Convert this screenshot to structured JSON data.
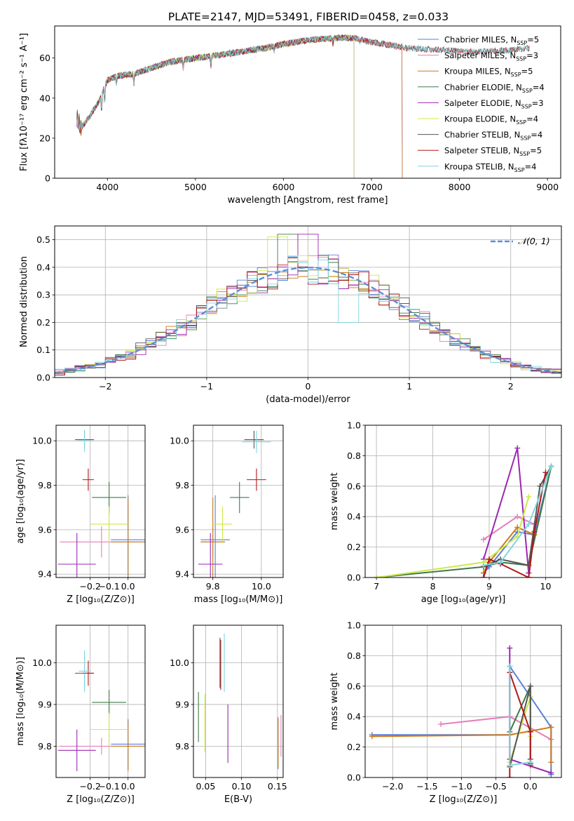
{
  "figure": {
    "title": "PLATE=2147, MJD=53491, FIBERID=0458, z=0.033"
  },
  "colors": {
    "Chabrier MILES": "#5b7fd6",
    "Salpeter MILES": "#e57fb8",
    "Kroupa MILES": "#cc7a1c",
    "Chabrier ELODIE": "#3f7a4a",
    "Salpeter ELODIE": "#9b27b0",
    "Kroupa ELODIE": "#cfe84a",
    "Chabrier STELIB": "#555555",
    "Salpeter STELIB": "#b01818",
    "Kroupa STELIB": "#7fd6e0",
    "normal": "#5b8fd6"
  },
  "chart_data": [
    {
      "id": "spectrum",
      "type": "line",
      "xlabel": "wavelength [Angstrom, rest frame]",
      "ylabel": "Flux [fλ10⁻¹⁷ erg cm⁻² s⁻¹ A⁻¹]",
      "xlim": [
        3400,
        9150
      ],
      "ylim": [
        0,
        76
      ],
      "xticks": [
        4000,
        5000,
        6000,
        7000,
        8000,
        9000
      ],
      "yticks": [
        0,
        20,
        40,
        60
      ],
      "grid": false,
      "legend_position": "top-right",
      "legend": [
        {
          "model": "Chabrier MILES",
          "label": "Chabrier MILES, N",
          "sub": "SSP",
          "tail": "=5"
        },
        {
          "model": "Salpeter MILES",
          "label": "Salpeter MILES, N",
          "sub": "SSP",
          "tail": "=3"
        },
        {
          "model": "Kroupa MILES",
          "label": "Kroupa MILES, N",
          "sub": "SSP",
          "tail": "=5"
        },
        {
          "model": "Chabrier ELODIE",
          "label": "Chabrier ELODIE, N",
          "sub": "SSP",
          "tail": "=4"
        },
        {
          "model": "Salpeter ELODIE",
          "label": "Salpeter ELODIE, N",
          "sub": "SSP",
          "tail": "=3"
        },
        {
          "model": "Kroupa ELODIE",
          "label": "Kroupa ELODIE, N",
          "sub": "SSP",
          "tail": "=4"
        },
        {
          "model": "Chabrier STELIB",
          "label": "Chabrier STELIB, N",
          "sub": "SSP",
          "tail": "=4"
        },
        {
          "model": "Salpeter STELIB",
          "label": "Salpeter STELIB, N",
          "sub": "SSP",
          "tail": "=5"
        },
        {
          "model": "Kroupa STELIB",
          "label": "Kroupa STELIB, N",
          "sub": "SSP",
          "tail": "=4"
        }
      ],
      "continuum": {
        "x": [
          3650,
          3700,
          3800,
          3900,
          4000,
          4100,
          4300,
          4500,
          4700,
          5000,
          5200,
          5500,
          5800,
          6000,
          6300,
          6600,
          6800,
          7000,
          7400,
          7800,
          8200,
          8600,
          8800
        ],
        "y": [
          30,
          25,
          31,
          38,
          49,
          51,
          52,
          55,
          58,
          60,
          61,
          63,
          65,
          67,
          69,
          70,
          70,
          68,
          65,
          64,
          63,
          64,
          65
        ]
      },
      "ranges": {
        "Chabrier MILES": [
          3650,
          7350
        ],
        "Salpeter MILES": [
          3650,
          7350
        ],
        "Kroupa MILES": [
          3650,
          7350
        ],
        "Chabrier ELODIE": [
          3650,
          6800
        ],
        "Salpeter ELODIE": [
          3650,
          6800
        ],
        "Kroupa ELODIE": [
          3650,
          6800
        ],
        "Chabrier STELIB": [
          3650,
          8800
        ],
        "Salpeter STELIB": [
          3650,
          8800
        ],
        "Kroupa STELIB": [
          3650,
          8800
        ]
      }
    },
    {
      "id": "residuals",
      "type": "bar",
      "xlabel": "(data-model)/error",
      "ylabel": "Normed distribution",
      "xlim": [
        -2.5,
        2.5
      ],
      "ylim": [
        0,
        0.55
      ],
      "xticks": [
        -2,
        -1,
        0,
        1,
        2
      ],
      "yticks": [
        0.0,
        0.1,
        0.2,
        0.3,
        0.4,
        0.5
      ],
      "grid": true,
      "bin_width": 0.1,
      "legend_position": "top-right",
      "legend": {
        "label": "𝒩(0, 1)"
      },
      "peaks": {
        "Chabrier ELODIE": [
          -0.2,
          0.52
        ],
        "Salpeter ELODIE": [
          0.0,
          0.52
        ],
        "Kroupa ELODIE": [
          -0.3,
          0.51
        ],
        "Kroupa STELIB": [
          0.4,
          0.2
        ]
      }
    },
    {
      "id": "age-vs-Z",
      "type": "scatter",
      "xlabel": "Z [log₁₀(Z/Z⊙)]",
      "ylabel": "age  [log₁₀(age/yr)]",
      "xlim": [
        -0.38,
        0.09
      ],
      "ylim": [
        9.385,
        10.07
      ],
      "xticks": [
        -0.2,
        -0.1,
        0.0
      ],
      "yticks": [
        9.4,
        9.6,
        9.8,
        10.0
      ],
      "grid": true,
      "points": [
        {
          "model": "Chabrier MILES",
          "x": 0.0,
          "y": 9.555,
          "xerr": 0.09,
          "yerr": 0.2
        },
        {
          "model": "Salpeter MILES",
          "x": -0.14,
          "y": 9.545,
          "xerr": 0.22,
          "yerr": 0.07
        },
        {
          "model": "Kroupa MILES",
          "x": 0.0,
          "y": 9.545,
          "xerr": 0.09,
          "yerr": 0.2
        },
        {
          "model": "Chabrier ELODIE",
          "x": -0.1,
          "y": 9.745,
          "xerr": 0.09,
          "yerr": 0.07
        },
        {
          "model": "Salpeter ELODIE",
          "x": -0.27,
          "y": 9.445,
          "xerr": 0.1,
          "yerr": 0.14
        },
        {
          "model": "Kroupa ELODIE",
          "x": -0.1,
          "y": 9.625,
          "xerr": 0.1,
          "yerr": 0.08
        },
        {
          "model": "Chabrier STELIB",
          "x": -0.23,
          "y": 10.005,
          "xerr": 0.05,
          "yerr": 0.04
        },
        {
          "model": "Salpeter STELIB",
          "x": -0.21,
          "y": 9.825,
          "xerr": 0.03,
          "yerr": 0.05
        },
        {
          "model": "Kroupa STELIB",
          "x": -0.23,
          "y": 10.0,
          "xerr": 0.03,
          "yerr": 0.05
        }
      ]
    },
    {
      "id": "age-vs-mass",
      "type": "scatter",
      "xlabel": "mass [log₁₀(M/M⊙)]",
      "ylabel": "",
      "xlim": [
        9.72,
        10.09
      ],
      "ylim": [
        9.385,
        10.07
      ],
      "xticks": [
        9.8,
        10.0
      ],
      "yticks": [
        9.4,
        9.6,
        9.8,
        10.0
      ],
      "grid": true,
      "points": [
        {
          "model": "Chabrier MILES",
          "x": 9.81,
          "y": 9.555,
          "xerr": 0.06,
          "yerr": 0.2
        },
        {
          "model": "Salpeter MILES",
          "x": 9.8,
          "y": 9.545,
          "xerr": 0.05,
          "yerr": 0.07
        },
        {
          "model": "Kroupa MILES",
          "x": 9.8,
          "y": 9.545,
          "xerr": 0.05,
          "yerr": 0.2
        },
        {
          "model": "Chabrier ELODIE",
          "x": 9.91,
          "y": 9.745,
          "xerr": 0.04,
          "yerr": 0.07
        },
        {
          "model": "Salpeter ELODIE",
          "x": 9.79,
          "y": 9.445,
          "xerr": 0.05,
          "yerr": 0.14
        },
        {
          "model": "Kroupa ELODIE",
          "x": 9.84,
          "y": 9.625,
          "xerr": 0.04,
          "yerr": 0.08
        },
        {
          "model": "Chabrier STELIB",
          "x": 9.97,
          "y": 10.005,
          "xerr": 0.04,
          "yerr": 0.04
        },
        {
          "model": "Salpeter STELIB",
          "x": 9.98,
          "y": 9.825,
          "xerr": 0.04,
          "yerr": 0.05
        },
        {
          "model": "Kroupa STELIB",
          "x": 9.98,
          "y": 9.995,
          "xerr": 0.06,
          "yerr": 0.05
        }
      ]
    },
    {
      "id": "weight-vs-age",
      "type": "line",
      "xlabel": "age  [log₁₀(age/yr)]",
      "ylabel": "mass weight",
      "xlim": [
        6.8,
        10.28
      ],
      "ylim": [
        0,
        1.0
      ],
      "xticks": [
        7,
        8,
        9,
        10
      ],
      "yticks": [
        0.0,
        0.2,
        0.4,
        0.6,
        0.8,
        1.0
      ],
      "grid": true,
      "series": [
        {
          "model": "Chabrier MILES",
          "x": [
            8.9,
            9.0,
            9.5,
            9.8,
            10.1
          ],
          "y": [
            0.03,
            0.07,
            0.3,
            0.28,
            0.73
          ]
        },
        {
          "model": "Salpeter MILES",
          "x": [
            8.9,
            9.5,
            9.8
          ],
          "y": [
            0.25,
            0.4,
            0.35
          ]
        },
        {
          "model": "Kroupa MILES",
          "x": [
            8.9,
            9.0,
            9.5,
            9.8
          ],
          "y": [
            0.03,
            0.1,
            0.33,
            0.28
          ]
        },
        {
          "model": "Chabrier ELODIE",
          "x": [
            7.0,
            8.9,
            9.2,
            9.7,
            10.1
          ],
          "y": [
            0.0,
            0.07,
            0.1,
            0.08,
            0.73
          ]
        },
        {
          "model": "Salpeter ELODIE",
          "x": [
            8.9,
            9.5,
            9.7
          ],
          "y": [
            0.12,
            0.85,
            0.03
          ]
        },
        {
          "model": "Kroupa ELODIE",
          "x": [
            7.0,
            8.9,
            9.5,
            9.7
          ],
          "y": [
            0.0,
            0.1,
            0.27,
            0.53
          ]
        },
        {
          "model": "Chabrier STELIB",
          "x": [
            8.9,
            9.2,
            9.7,
            9.9,
            10.1
          ],
          "y": [
            0.07,
            0.12,
            0.08,
            0.6,
            0.73
          ]
        },
        {
          "model": "Salpeter STELIB",
          "x": [
            8.9,
            9.0,
            9.2,
            9.7,
            9.8,
            10.0
          ],
          "y": [
            0.0,
            0.12,
            0.09,
            0.0,
            0.3,
            0.69
          ]
        },
        {
          "model": "Kroupa STELIB",
          "x": [
            8.9,
            9.2,
            9.7,
            10.1
          ],
          "y": [
            0.08,
            0.1,
            0.35,
            0.73
          ]
        }
      ]
    },
    {
      "id": "mass-vs-Z",
      "type": "scatter",
      "xlabel": "Z [log₁₀(Z/Z⊙)]",
      "ylabel": "mass [log₁₀(M/M⊙)]",
      "xlim": [
        -0.38,
        0.09
      ],
      "ylim": [
        9.725,
        10.09
      ],
      "xticks": [
        -0.2,
        -0.1,
        0.0
      ],
      "yticks": [
        9.8,
        9.9,
        10.0
      ],
      "grid": true,
      "points": [
        {
          "model": "Chabrier MILES",
          "x": 0.0,
          "y": 9.805,
          "xerr": 0.09,
          "yerr": 0.06
        },
        {
          "model": "Salpeter MILES",
          "x": -0.14,
          "y": 9.8,
          "xerr": 0.22,
          "yerr": 0.02
        },
        {
          "model": "Kroupa MILES",
          "x": 0.0,
          "y": 9.8,
          "xerr": 0.09,
          "yerr": 0.06
        },
        {
          "model": "Chabrier ELODIE",
          "x": -0.1,
          "y": 9.905,
          "xerr": 0.09,
          "yerr": 0.03
        },
        {
          "model": "Salpeter ELODIE",
          "x": -0.27,
          "y": 9.79,
          "xerr": 0.1,
          "yerr": 0.05
        },
        {
          "model": "Kroupa ELODIE",
          "x": -0.1,
          "y": 9.84,
          "xerr": 0.1,
          "yerr": 0.04
        },
        {
          "model": "Chabrier STELIB",
          "x": -0.23,
          "y": 9.975,
          "xerr": 0.05,
          "yerr": 0.04
        },
        {
          "model": "Salpeter STELIB",
          "x": -0.21,
          "y": 9.975,
          "xerr": 0.03,
          "yerr": 0.03
        },
        {
          "model": "Kroupa STELIB",
          "x": -0.23,
          "y": 9.98,
          "xerr": 0.03,
          "yerr": 0.05
        }
      ]
    },
    {
      "id": "mass-vs-EBV",
      "type": "scatter",
      "xlabel": "E(B-V)",
      "ylabel": "",
      "xlim": [
        0.033,
        0.158
      ],
      "ylim": [
        9.725,
        10.09
      ],
      "xticks": [
        0.05,
        0.1,
        0.15
      ],
      "yticks": [
        9.8,
        9.9,
        10.0
      ],
      "grid": true,
      "points": [
        {
          "model": "Chabrier MILES",
          "x": 0.151,
          "y": 9.805,
          "xerr": 0,
          "yerr": 0.06
        },
        {
          "model": "Salpeter MILES",
          "x": 0.155,
          "y": 9.825,
          "xerr": 0,
          "yerr": 0.05
        },
        {
          "model": "Kroupa MILES",
          "x": 0.151,
          "y": 9.81,
          "xerr": 0,
          "yerr": 0.06
        },
        {
          "model": "Chabrier ELODIE",
          "x": 0.04,
          "y": 9.87,
          "xerr": 0,
          "yerr": 0.06
        },
        {
          "model": "Salpeter ELODIE",
          "x": 0.081,
          "y": 9.83,
          "xerr": 0,
          "yerr": 0.07
        },
        {
          "model": "Kroupa ELODIE",
          "x": 0.049,
          "y": 9.855,
          "xerr": 0,
          "yerr": 0.07
        },
        {
          "model": "Chabrier STELIB",
          "x": 0.07,
          "y": 10.0,
          "xerr": 0,
          "yerr": 0.06
        },
        {
          "model": "Salpeter STELIB",
          "x": 0.071,
          "y": 9.995,
          "xerr": 0,
          "yerr": 0.06
        },
        {
          "model": "Kroupa STELIB",
          "x": 0.076,
          "y": 10.0,
          "xerr": 0,
          "yerr": 0.07
        }
      ]
    },
    {
      "id": "weight-vs-Z",
      "type": "line",
      "xlabel": "Z [log₁₀(Z/Z⊙)]",
      "ylabel": "mass weight",
      "xlim": [
        -2.4,
        0.45
      ],
      "ylim": [
        0,
        1.0
      ],
      "xticks": [
        -2.0,
        -1.5,
        -1.0,
        -0.5,
        0.0
      ],
      "yticks": [
        0.0,
        0.2,
        0.4,
        0.6,
        0.8,
        1.0
      ],
      "grid": true,
      "series": [
        {
          "model": "Chabrier MILES",
          "x": [
            -2.3,
            -0.3,
            -0.3,
            0.3,
            0.3
          ],
          "y": [
            0.28,
            0.28,
            0.73,
            0.33,
            0.02
          ]
        },
        {
          "model": "Salpeter MILES",
          "x": [
            -1.3,
            -0.3,
            0.3
          ],
          "y": [
            0.35,
            0.4,
            0.25
          ]
        },
        {
          "model": "Kroupa MILES",
          "x": [
            -2.3,
            -0.3,
            0.3,
            0.3
          ],
          "y": [
            0.27,
            0.28,
            0.33,
            0.1
          ]
        },
        {
          "model": "Chabrier ELODIE",
          "x": [
            -0.3,
            0.0,
            0.0
          ],
          "y": [
            0.3,
            0.6,
            0.08
          ]
        },
        {
          "model": "Salpeter ELODIE",
          "x": [
            -0.3,
            -0.3,
            0.3
          ],
          "y": [
            0.85,
            0.12,
            0.03
          ]
        },
        {
          "model": "Kroupa ELODIE",
          "x": [
            -0.3,
            0.0,
            0.0
          ],
          "y": [
            0.1,
            0.53,
            0.27
          ]
        },
        {
          "model": "Chabrier STELIB",
          "x": [
            -0.3,
            0.0,
            0.0
          ],
          "y": [
            0.07,
            0.6,
            0.12
          ]
        },
        {
          "model": "Salpeter STELIB",
          "x": [
            -0.3,
            -0.3,
            0.0,
            0.0
          ],
          "y": [
            0.0,
            0.69,
            0.3,
            0.09
          ]
        },
        {
          "model": "Kroupa STELIB",
          "x": [
            -0.3,
            -0.3,
            0.0
          ],
          "y": [
            0.73,
            0.08,
            0.1
          ]
        }
      ]
    }
  ]
}
